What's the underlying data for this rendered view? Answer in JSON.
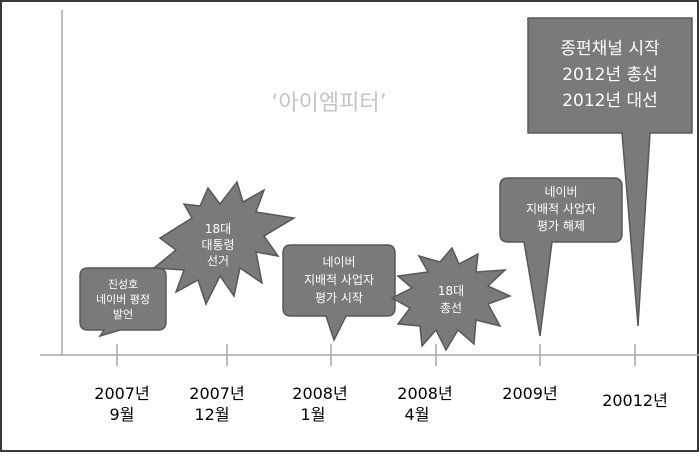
{
  "diagram": {
    "watermark": "‘아이엠피터’",
    "colors": {
      "callout_fill": "#7a7a7a",
      "callout_stroke": "#585858",
      "callout_text": "#ffffff",
      "axis": "#a8a8a8",
      "label": "#000000",
      "watermark": "#c4c4c4"
    },
    "timeline": [
      {
        "year": "2007년",
        "month": "9월"
      },
      {
        "year": "2007년",
        "month": "12월"
      },
      {
        "year": "2008년",
        "month": "1월"
      },
      {
        "year": "2008년",
        "month": "4월"
      },
      {
        "year": "2009년",
        "month": ""
      },
      {
        "year": "20012년",
        "month": ""
      }
    ],
    "events": [
      {
        "shape": "rounded-callout",
        "lines": [
          "진성호",
          "네이버 평정",
          "발언"
        ]
      },
      {
        "shape": "burst",
        "lines": [
          "18대",
          "대통령",
          "선거"
        ]
      },
      {
        "shape": "rounded-callout",
        "lines": [
          "네이버",
          "지배적 사업자",
          "평가 시작"
        ]
      },
      {
        "shape": "burst",
        "lines": [
          "18대",
          "총선"
        ]
      },
      {
        "shape": "rounded-callout",
        "lines": [
          "네이버",
          "지배적 사업자",
          "평가 해제"
        ]
      },
      {
        "shape": "rectangle-callout",
        "lines": [
          "종편채널 시작",
          "2012년 총선",
          "2012년 대선"
        ]
      }
    ]
  }
}
